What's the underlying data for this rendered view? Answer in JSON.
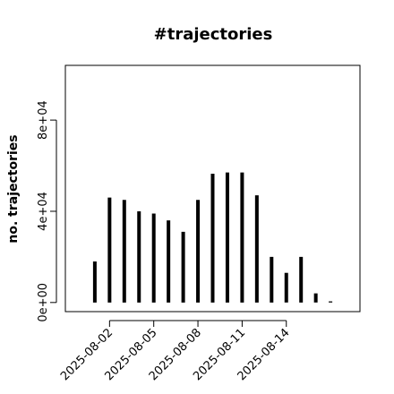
{
  "chart_data": {
    "type": "histline",
    "title": "#trajectories",
    "ylabel": "no. trajectories",
    "x": [
      "2025-08-01",
      "2025-08-02",
      "2025-08-03",
      "2025-08-04",
      "2025-08-05",
      "2025-08-06",
      "2025-08-07",
      "2025-08-08",
      "2025-08-09",
      "2025-08-10",
      "2025-08-11",
      "2025-08-12",
      "2025-08-13",
      "2025-08-14",
      "2025-08-15",
      "2025-08-16",
      "2025-08-17"
    ],
    "values": [
      18000,
      46000,
      45000,
      40000,
      39000,
      36000,
      31000,
      45000,
      56500,
      57000,
      57000,
      47000,
      20000,
      13000,
      20000,
      4000,
      500
    ],
    "color": "#000000",
    "xlim": [
      "2025-07-30",
      "2025-08-19"
    ],
    "xticks": [
      "2025-08-02",
      "2025-08-05",
      "2025-08-08",
      "2025-08-11",
      "2025-08-14"
    ],
    "ylim": [
      -4000,
      104000
    ],
    "yticks": [
      {
        "value": 0,
        "label": "0e+00"
      },
      {
        "value": 40000,
        "label": "4e+04"
      },
      {
        "value": 80000,
        "label": "8e+04"
      }
    ]
  }
}
